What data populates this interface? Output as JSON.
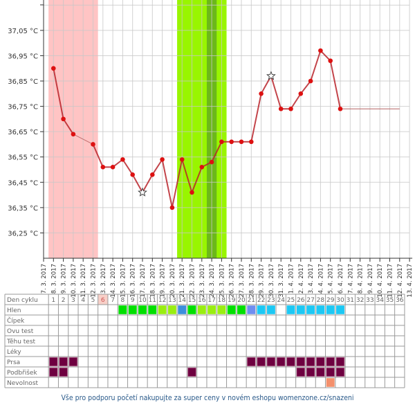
{
  "chart_data": {
    "type": "line",
    "title": "",
    "xlabel": "",
    "ylabel": "",
    "ylim": [
      36.15,
      37.17
    ],
    "y_ticks": [
      "36,25 °C",
      "36,35 °C",
      "36,45 °C",
      "36,55 °C",
      "36,65 °C",
      "36,75 °C",
      "36,85 °C",
      "36,95 °C",
      "37,05 °C"
    ],
    "y_tick_values": [
      36.25,
      36.35,
      36.45,
      36.55,
      36.65,
      36.75,
      36.85,
      36.95,
      37.05
    ],
    "x_labels": [
      "7. 3. 2017",
      "8. 3. 2017",
      "9. 3. 2017",
      "10. 3. 2017",
      "11. 3. 2017",
      "12. 3. 2017",
      "13. 3. 2017",
      "14. 3. 2017",
      "15. 3. 2017",
      "16. 3. 2017",
      "17. 3. 2017",
      "18. 3. 2017",
      "19. 3. 2017",
      "20. 3. 2017",
      "21. 3. 2017",
      "22. 3. 2017",
      "23. 3. 2017",
      "24. 3. 2017",
      "25. 3. 2017",
      "26. 3. 2017",
      "27. 3. 2017",
      "28. 3. 2017",
      "29. 3. 2017",
      "30. 3. 2017",
      "31. 3. 2017",
      "1. 4. 2017",
      "2. 4. 2017",
      "3. 4. 2017",
      "4. 4. 2017",
      "5. 4. 2017",
      "6. 4. 2017",
      "7. 4. 2017",
      "8. 4. 2017",
      "9. 4. 2017",
      "10. 4. 2017",
      "11. 4. 2017",
      "12. 4. 2017",
      "13. 4. 2017"
    ],
    "grid": true,
    "series": [
      {
        "days": [
          1,
          2,
          3,
          5,
          6,
          7,
          8,
          9,
          10,
          11,
          12,
          13,
          14,
          15,
          16,
          17,
          18,
          19,
          20,
          21,
          22,
          23,
          24,
          25,
          26,
          27,
          28,
          29,
          30
        ],
        "values": [
          36.9,
          36.7,
          36.64,
          36.6,
          36.51,
          36.51,
          36.54,
          36.48,
          36.41,
          36.48,
          36.54,
          36.35,
          36.54,
          36.41,
          36.51,
          36.53,
          36.61,
          36.61,
          36.61,
          36.61,
          36.8,
          36.87,
          36.74,
          36.74,
          36.8,
          36.85,
          36.97,
          36.93,
          36.74
        ],
        "star_days": [
          10,
          23
        ],
        "color": "#c41a1a"
      }
    ],
    "projection": {
      "from_day": 30,
      "to_day": 36,
      "value": 36.74
    },
    "bands": [
      {
        "kind": "menstruation",
        "from_day": 1,
        "to_day": 5,
        "color": "#ffc4c4"
      },
      {
        "kind": "fertile",
        "from_day": 14,
        "to_day": 18,
        "color": "#99f500"
      },
      {
        "kind": "ovulation",
        "from_day": 17,
        "to_day": 17,
        "color": "#6cb81a"
      }
    ]
  },
  "table": {
    "header_label": "Den cyklu",
    "days": [
      "1",
      "2",
      "3",
      "4",
      "5",
      "6",
      "7",
      "8",
      "9",
      "10",
      "11",
      "12",
      "13",
      "14",
      "15",
      "16",
      "17",
      "18",
      "19",
      "20",
      "21",
      "22",
      "23",
      "24",
      "25",
      "26",
      "27",
      "28",
      "29",
      "30",
      "31",
      "32",
      "33",
      "34",
      "35",
      "36"
    ],
    "highlight_day": 6,
    "highlight_color": "#f8d0c8",
    "rows": [
      {
        "label": "Hlen",
        "marks": {
          "8": "#00e000",
          "9": "#00e000",
          "10": "#00e000",
          "11": "#00e000",
          "12": "#99ee11",
          "13": "#99ee11",
          "14": "#3d8fdc",
          "15": "#00e000",
          "16": "#99ee11",
          "17": "#99ee11",
          "18": "#99ee11",
          "19": "#00e000",
          "20": "#00e000",
          "21": "#6f8ef0",
          "22": "#1cc8f4",
          "23": "#1cc8f4",
          "25": "#1cc8f4",
          "26": "#1cc8f4",
          "27": "#1cc8f4",
          "28": "#1cc8f4",
          "29": "#1cc8f4",
          "30": "#1cc8f4"
        }
      },
      {
        "label": "Čípek",
        "marks": {}
      },
      {
        "label": "Ovu test",
        "marks": {}
      },
      {
        "label": "Těhu test",
        "marks": {}
      },
      {
        "label": "Léky",
        "marks": {}
      },
      {
        "label": "Prsa",
        "marks": {
          "1": "#6e0040",
          "2": "#6e0040",
          "3": "#6e0040",
          "21": "#6e0040",
          "22": "#6e0040",
          "23": "#6e0040",
          "24": "#6e0040",
          "25": "#6e0040",
          "26": "#6e0040",
          "27": "#6e0040",
          "28": "#6e0040",
          "29": "#6e0040",
          "30": "#6e0040"
        }
      },
      {
        "label": "Podbřišek",
        "marks": {
          "1": "#6e0040",
          "2": "#6e0040",
          "15": "#6e0040",
          "26": "#6e0040",
          "27": "#6e0040",
          "28": "#6e0040",
          "29": "#6e0040",
          "30": "#6e0040"
        }
      },
      {
        "label": "Nevolnost",
        "marks": {
          "29": "#f4906c"
        }
      }
    ]
  },
  "footer": {
    "text": "Vše pro podporu početí nakupujte za super ceny v novém eshopu womenzone.cz/snazeni"
  }
}
